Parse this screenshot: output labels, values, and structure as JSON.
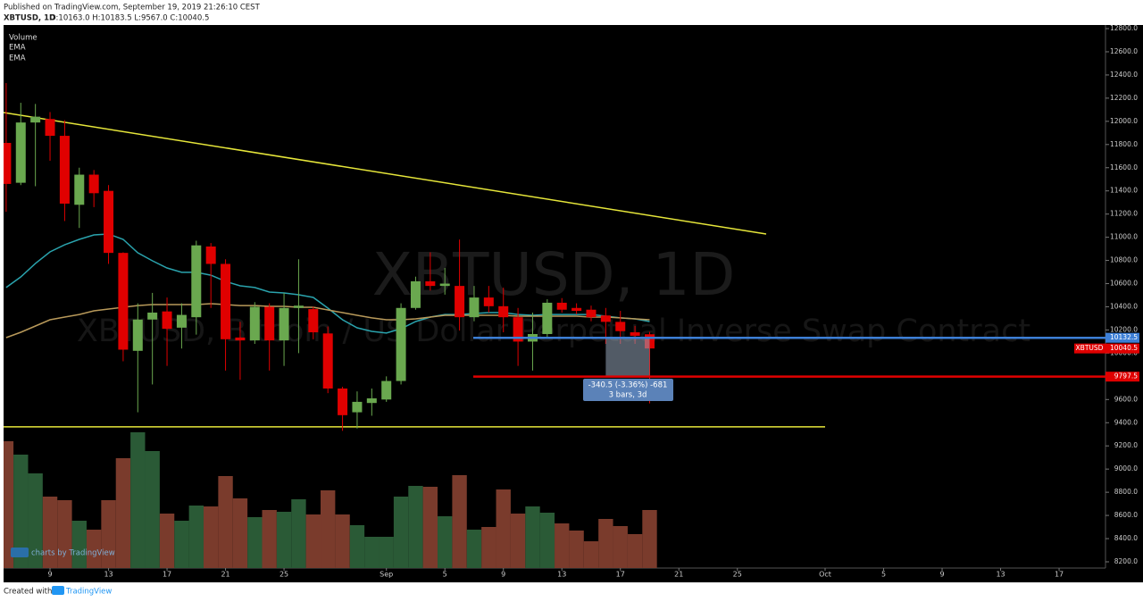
{
  "header": {
    "published": "Published on TradingView.com, September 19, 2019 21:26:10 CEST",
    "symbol": "XBTUSD, 1D",
    "ohlc": "O:10163.0 H:10183.5 L:9567.0 C:10040.5"
  },
  "footer": {
    "created": "Created with",
    "brand": "TradingView",
    "badge": "charts by TradingView"
  },
  "chart_data": {
    "type": "candlestick",
    "watermark": "XBTUSD, 1D",
    "watermark_sub": "XBTUSD, Bitcoin / US Dollar Perpetual Inverse Swap Contract",
    "categories": [
      null,
      null,
      null,
      "9",
      null,
      null,
      null,
      "13",
      null,
      null,
      null,
      "17",
      null,
      null,
      null,
      "21",
      null,
      null,
      null,
      "25",
      null,
      null,
      null,
      null,
      null,
      null,
      "Sep",
      null,
      null,
      null,
      "5",
      null,
      null,
      null,
      "9",
      null,
      null,
      null,
      "13",
      null,
      null,
      null,
      "17",
      null,
      null,
      null,
      "21",
      null,
      null,
      null,
      "25",
      null,
      null,
      null,
      null,
      null,
      "Oct",
      null,
      null,
      null,
      "5",
      null,
      null,
      null,
      "9",
      null,
      null,
      null,
      "13",
      null,
      null,
      null,
      "17",
      null,
      null
    ],
    "open": [
      11814,
      11470,
      11990,
      12020,
      11875,
      11280,
      11540,
      11400,
      10865,
      10020,
      10290,
      10360,
      10220,
      10310,
      10920,
      10770,
      10135,
      10110,
      10400,
      10110,
      10390,
      10380,
      10170,
      9695,
      9490,
      9570,
      9600,
      9760,
      10390,
      10620,
      10580,
      10580,
      10310,
      10480,
      10405,
      10310,
      10100,
      10165,
      10435,
      10390,
      10375,
      10325,
      10270,
      10180,
      10163,
      null,
      null,
      null,
      null,
      null,
      null,
      null,
      null,
      null,
      null,
      null,
      null,
      null,
      null,
      null,
      null,
      null,
      null,
      null,
      null,
      null,
      null,
      null,
      null,
      null,
      null,
      null,
      null,
      null,
      null
    ],
    "high": [
      12330,
      12160,
      12150,
      12080,
      12010,
      11600,
      11580,
      11450,
      10870,
      10430,
      10520,
      10480,
      10430,
      10970,
      10950,
      10810,
      10270,
      10440,
      10430,
      10520,
      10810,
      10400,
      10230,
      9710,
      9670,
      9695,
      9800,
      10430,
      10660,
      10870,
      10735,
      10980,
      10580,
      10580,
      10565,
      10390,
      10350,
      10465,
      10475,
      10430,
      10410,
      10390,
      10365,
      10235,
      10183.5,
      null,
      null,
      null,
      null,
      null,
      null,
      null,
      null,
      null,
      null,
      null,
      null,
      null,
      null,
      null,
      null,
      null,
      null,
      null,
      null,
      null,
      null,
      null,
      null,
      null,
      null,
      null,
      null,
      null,
      null
    ],
    "low": [
      11220,
      11450,
      11440,
      11660,
      11140,
      11080,
      11260,
      10770,
      9930,
      9490,
      9730,
      9890,
      10040,
      10160,
      10390,
      9850,
      9770,
      10080,
      9850,
      9890,
      10000,
      10120,
      9655,
      9330,
      9350,
      9460,
      9580,
      9730,
      10375,
      10540,
      10505,
      10195,
      10275,
      10350,
      10180,
      9890,
      9850,
      10135,
      10350,
      10335,
      10275,
      10080,
      10080,
      10080,
      9567,
      null,
      null,
      null,
      null,
      null,
      null,
      null,
      null,
      null,
      null,
      null,
      null,
      null,
      null,
      null,
      null,
      null,
      null,
      null,
      null,
      null,
      null,
      null,
      null,
      null,
      null,
      null,
      null,
      null,
      null
    ],
    "close": [
      11460,
      11990,
      12040,
      11875,
      11290,
      11540,
      11380,
      10865,
      10030,
      10290,
      10350,
      10210,
      10330,
      10930,
      10770,
      10120,
      10110,
      10400,
      10110,
      10390,
      10410,
      10180,
      9695,
      9465,
      9580,
      9610,
      9760,
      10390,
      10620,
      10580,
      10600,
      10310,
      10480,
      10405,
      10310,
      10100,
      10165,
      10435,
      10375,
      10365,
      10310,
      10270,
      10190,
      10150,
      10040.5,
      null,
      null,
      null,
      null,
      null,
      null,
      null,
      null,
      null,
      null,
      null,
      null,
      null,
      null,
      null,
      null,
      null,
      null,
      null,
      null,
      null,
      null,
      null,
      null,
      null,
      null,
      null,
      null,
      null,
      null
    ],
    "up_color": "#6aa84f",
    "down_color": "#e00000",
    "volume": {
      "name": "Volume",
      "up_color": "#2a5a36",
      "down_color": "#7a3b2c",
      "values": [
        142,
        127,
        106,
        80,
        76,
        53,
        43,
        76,
        123,
        152,
        131,
        61,
        53,
        70,
        69,
        103,
        78,
        57,
        65,
        63,
        77,
        60,
        87,
        60,
        48,
        35,
        35,
        80,
        92,
        91,
        58,
        104,
        43,
        46,
        88,
        61,
        69,
        62,
        50,
        42,
        30,
        55,
        47,
        38,
        65,
        null,
        null,
        null,
        null,
        null,
        null,
        null,
        null,
        null,
        null,
        null,
        null,
        null,
        null,
        null,
        null,
        null,
        null,
        null,
        null,
        null,
        null,
        null,
        null,
        null,
        null,
        null,
        null,
        null,
        null
      ]
    },
    "series": [
      {
        "name": "EMA",
        "color": "#2aa3ad",
        "values": [
          10566,
          10658,
          10774,
          10874,
          10935,
          10982,
          11020,
          11028,
          10982,
          10866,
          10797,
          10735,
          10697,
          10697,
          10673,
          10619,
          10581,
          10566,
          10527,
          10519,
          10504,
          10481,
          10388,
          10288,
          10219,
          10188,
          10173,
          10211,
          10273,
          10311,
          10334,
          10334,
          10342,
          10350,
          10350,
          10334,
          10327,
          10334,
          10334,
          10334,
          10334,
          10319,
          10304,
          10296,
          10273,
          null,
          null,
          null,
          null,
          null,
          null,
          null,
          null,
          null,
          null,
          null,
          null,
          null,
          null,
          null,
          null,
          null,
          null,
          null,
          null,
          null,
          null,
          null,
          null,
          null,
          null,
          null,
          null,
          null,
          null
        ]
      },
      {
        "name": "EMA",
        "color": "#b8995a",
        "values": [
          10134,
          10180,
          10234,
          10288,
          10311,
          10334,
          10365,
          10381,
          10396,
          10411,
          10419,
          10419,
          10419,
          10419,
          10427,
          10419,
          10411,
          10411,
          10404,
          10404,
          10396,
          10396,
          10373,
          10350,
          10327,
          10304,
          10288,
          10288,
          10296,
          10311,
          10327,
          10327,
          10327,
          10327,
          10327,
          10319,
          10319,
          10319,
          10319,
          10319,
          10311,
          10311,
          10304,
          10296,
          10288,
          null,
          null,
          null,
          null,
          null,
          null,
          null,
          null,
          null,
          null,
          null,
          null,
          null,
          null,
          null,
          null,
          null,
          null,
          null,
          null,
          null,
          null,
          null,
          null,
          null,
          null,
          null,
          null,
          null,
          null
        ]
      }
    ],
    "ylim": [
      8146,
      12831
    ],
    "yticks": [
      {
        "value": 12800,
        "label": "12800.0"
      },
      {
        "value": 12600,
        "label": "12600.0"
      },
      {
        "value": 12400,
        "label": "12400.0"
      },
      {
        "value": 12200,
        "label": "12200.0"
      },
      {
        "value": 12000,
        "label": "12000.0"
      },
      {
        "value": 11800,
        "label": "11800.0"
      },
      {
        "value": 11600,
        "label": "11600.0"
      },
      {
        "value": 11400,
        "label": "11400.0"
      },
      {
        "value": 11200,
        "label": "11200.0"
      },
      {
        "value": 11000,
        "label": "11000.0"
      },
      {
        "value": 10800,
        "label": "10800.0"
      },
      {
        "value": 10600,
        "label": "10600.0"
      },
      {
        "value": 10400,
        "label": "10400.0"
      },
      {
        "value": 10200,
        "label": "10200.0"
      },
      {
        "value": 10000,
        "label": "10000.0"
      },
      {
        "value": 9800,
        "label": "9800.0"
      },
      {
        "value": 9600,
        "label": "9600.0"
      },
      {
        "value": 9400,
        "label": "9400.0"
      },
      {
        "value": 9200,
        "label": "9200.0"
      },
      {
        "value": 9000,
        "label": "9000.0"
      },
      {
        "value": 8800,
        "label": "8800.0"
      },
      {
        "value": 8600,
        "label": "8600.0"
      },
      {
        "value": 8400,
        "label": "8400.0"
      },
      {
        "value": 8200,
        "label": "8200.0"
      }
    ],
    "price_lines": [
      {
        "value": 10132.5,
        "color": "#3d7fd6"
      },
      {
        "value": 9797.5,
        "color": "#e00000"
      }
    ],
    "support_line": {
      "value": 9364,
      "color": "#e6e63a"
    },
    "last_price": {
      "label": "XBTUSD",
      "value": 10040.5
    },
    "measure": {
      "text": "-340.5 (-3.36%) -681",
      "bars": "3 bars, 3d"
    }
  }
}
